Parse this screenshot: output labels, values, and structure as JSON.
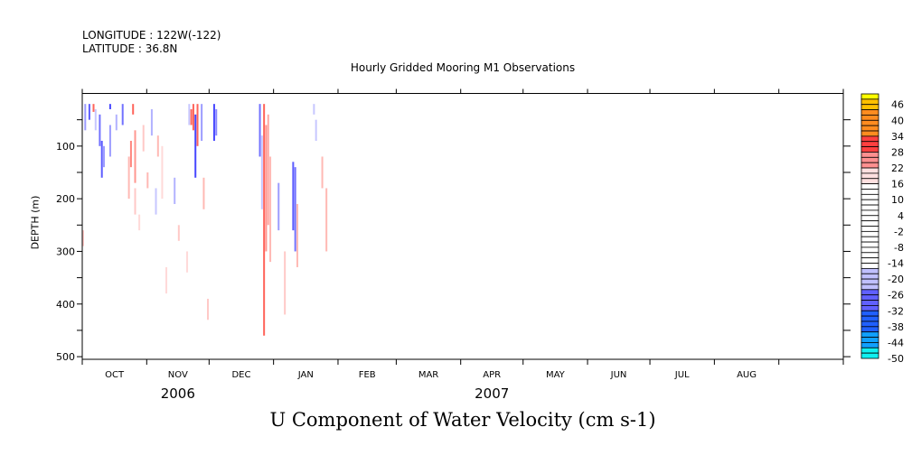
{
  "header": {
    "longitude": "LONGITUDE : 122W(-122)",
    "latitude": "LATITUDE : 36.8N"
  },
  "chart_data": {
    "type": "heatmap",
    "title": "Hourly Gridded Mooring M1 Observations",
    "subtitle": "U Component of Water Velocity (cm s-1)",
    "ylabel": "DEPTH (m)",
    "ylim": [
      505,
      0
    ],
    "yticks": [
      100,
      200,
      300,
      400,
      500
    ],
    "months": [
      "OCT",
      "NOV",
      "DEC",
      "JAN",
      "FEB",
      "MAR",
      "APR",
      "MAY",
      "JUN",
      "JUL",
      "AUG"
    ],
    "month_days": [
      31,
      30,
      31,
      31,
      28,
      31,
      30,
      31,
      30,
      31,
      31
    ],
    "years": [
      {
        "label": "2006",
        "month_index": 1
      },
      {
        "label": "2007",
        "month_index": 6
      }
    ],
    "colorbar": {
      "min": -50,
      "max": 50,
      "step": 2,
      "labels": [
        46,
        40,
        34,
        28,
        22,
        16,
        10,
        4,
        -2,
        -8,
        -14,
        -20,
        -26,
        -32,
        -38,
        -44,
        -50
      ]
    },
    "streaks": [
      [
        1,
        20,
        70,
        -20
      ],
      [
        3,
        20,
        50,
        -26
      ],
      [
        4,
        40,
        90,
        -14
      ],
      [
        5,
        20,
        35,
        30
      ],
      [
        6,
        30,
        70,
        -16
      ],
      [
        8,
        40,
        100,
        -24
      ],
      [
        9,
        90,
        160,
        -26
      ],
      [
        10,
        100,
        140,
        -20
      ],
      [
        13,
        20,
        30,
        -28
      ],
      [
        13,
        60,
        120,
        -20
      ],
      [
        16,
        40,
        70,
        -18
      ],
      [
        19,
        20,
        60,
        -24
      ],
      [
        22,
        120,
        200,
        20
      ],
      [
        23,
        90,
        140,
        26
      ],
      [
        24,
        20,
        40,
        30
      ],
      [
        25,
        70,
        170,
        24
      ],
      [
        25,
        180,
        230,
        18
      ],
      [
        29,
        60,
        110,
        18
      ],
      [
        31,
        150,
        180,
        20
      ],
      [
        33,
        30,
        80,
        -18
      ],
      [
        35,
        180,
        230,
        -16
      ],
      [
        36,
        80,
        120,
        20
      ],
      [
        38,
        100,
        200,
        16
      ],
      [
        44,
        160,
        210,
        -18
      ],
      [
        46,
        250,
        280,
        18
      ],
      [
        51,
        20,
        60,
        -16
      ],
      [
        52,
        30,
        60,
        30
      ],
      [
        53,
        20,
        70,
        30
      ],
      [
        54,
        40,
        160,
        -28
      ],
      [
        55,
        20,
        100,
        30
      ],
      [
        57,
        20,
        90,
        -20
      ],
      [
        58,
        160,
        220,
        20
      ],
      [
        63,
        20,
        90,
        -28
      ],
      [
        64,
        30,
        80,
        -22
      ],
      [
        85,
        20,
        120,
        -24
      ],
      [
        86,
        80,
        220,
        -16
      ],
      [
        87,
        20,
        460,
        30
      ],
      [
        88,
        60,
        300,
        24
      ],
      [
        89,
        40,
        250,
        22
      ],
      [
        90,
        120,
        320,
        20
      ],
      [
        94,
        170,
        260,
        -20
      ],
      [
        101,
        130,
        260,
        -26
      ],
      [
        102,
        140,
        300,
        -24
      ],
      [
        103,
        210,
        330,
        20
      ],
      [
        97,
        300,
        420,
        18
      ],
      [
        111,
        20,
        40,
        -16
      ],
      [
        112,
        50,
        90,
        -16
      ],
      [
        115,
        120,
        180,
        20
      ],
      [
        117,
        180,
        300,
        20
      ],
      [
        0,
        260,
        290,
        18
      ],
      [
        27,
        230,
        260,
        16
      ],
      [
        40,
        330,
        380,
        16
      ],
      [
        50,
        300,
        340,
        16
      ],
      [
        60,
        390,
        430,
        18
      ]
    ]
  }
}
